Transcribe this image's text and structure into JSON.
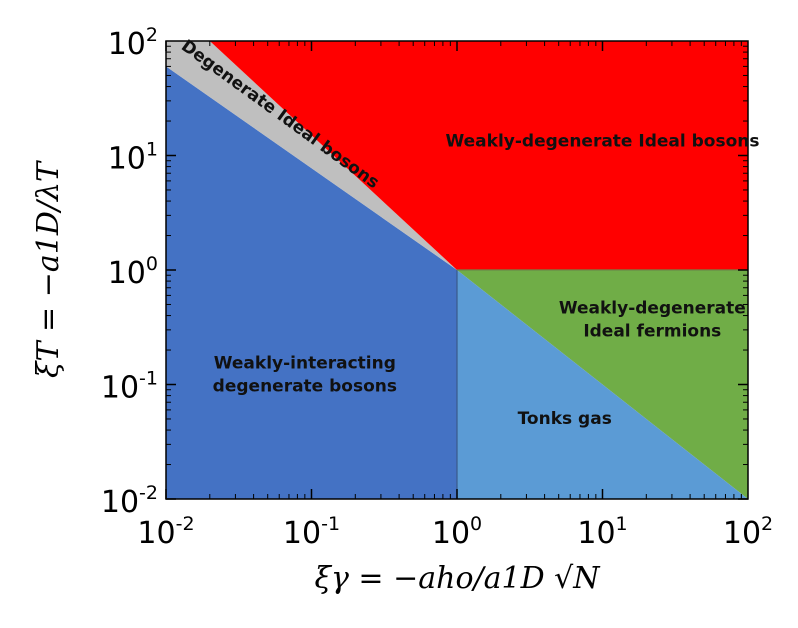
{
  "chart_data": {
    "type": "area",
    "x_scale": "log",
    "y_scale": "log",
    "xlim": [
      0.01,
      100
    ],
    "ylim": [
      0.01,
      100
    ],
    "xlabel": "ξγ = −aho/a1D √N",
    "ylabel": "ξT = −a1D/λT",
    "x_ticks": [
      {
        "value": 0.01,
        "base": "10",
        "exp": "-2"
      },
      {
        "value": 0.1,
        "base": "10",
        "exp": "-1"
      },
      {
        "value": 1,
        "base": "10",
        "exp": "0"
      },
      {
        "value": 10,
        "base": "10",
        "exp": "1"
      },
      {
        "value": 100,
        "base": "10",
        "exp": "2"
      }
    ],
    "y_ticks": [
      {
        "value": 0.01,
        "base": "10",
        "exp": "-2"
      },
      {
        "value": 0.1,
        "base": "10",
        "exp": "-1"
      },
      {
        "value": 1,
        "base": "10",
        "exp": "0"
      },
      {
        "value": 10,
        "base": "10",
        "exp": "1"
      },
      {
        "value": 100,
        "base": "10",
        "exp": "2"
      }
    ],
    "regions": [
      {
        "name": "Weakly-interacting degenerate bosons",
        "lines": [
          "Weakly-interacting",
          "degenerate bosons"
        ],
        "color": "#4472c4",
        "polygon": [
          [
            0.01,
            0.01
          ],
          [
            1,
            0.01
          ],
          [
            1,
            1
          ],
          [
            0.01,
            60
          ]
        ],
        "label_at": [
          0.09,
          0.11
        ],
        "label_rotation": 0
      },
      {
        "name": "Degenerate Ideal bosons",
        "lines": [
          "Degenerate Ideal bosons"
        ],
        "color": "#bfbfbf",
        "polygon": [
          [
            0.01,
            60
          ],
          [
            1,
            1
          ],
          [
            0.02,
            100
          ],
          [
            0.01,
            100
          ]
        ],
        "label_at": [
          0.058,
          21
        ],
        "label_rotation": 36
      },
      {
        "name": "Weakly-degenerate Ideal bosons",
        "lines": [
          "Weakly-degenerate Ideal bosons"
        ],
        "color": "#ff0000",
        "polygon": [
          [
            0.02,
            100
          ],
          [
            100,
            100
          ],
          [
            100,
            1
          ],
          [
            1,
            1
          ]
        ],
        "label_at": [
          10,
          12
        ],
        "label_rotation": 0
      },
      {
        "name": "Weakly-degenerate Ideal fermions",
        "lines": [
          "Weakly-degenerate",
          "Ideal fermions"
        ],
        "color": "#70ad47",
        "polygon": [
          [
            1,
            1
          ],
          [
            100,
            1
          ],
          [
            100,
            0.01
          ]
        ],
        "label_at": [
          22,
          0.33
        ],
        "label_rotation": 0
      },
      {
        "name": "Tonks gas",
        "lines": [
          "Tonks gas"
        ],
        "color": "#5b9bd5",
        "polygon": [
          [
            1,
            1
          ],
          [
            100,
            0.01
          ],
          [
            1,
            0.01
          ]
        ],
        "label_at": [
          5.5,
          0.045
        ],
        "label_rotation": 0
      }
    ],
    "grid": false,
    "legend": "none"
  }
}
